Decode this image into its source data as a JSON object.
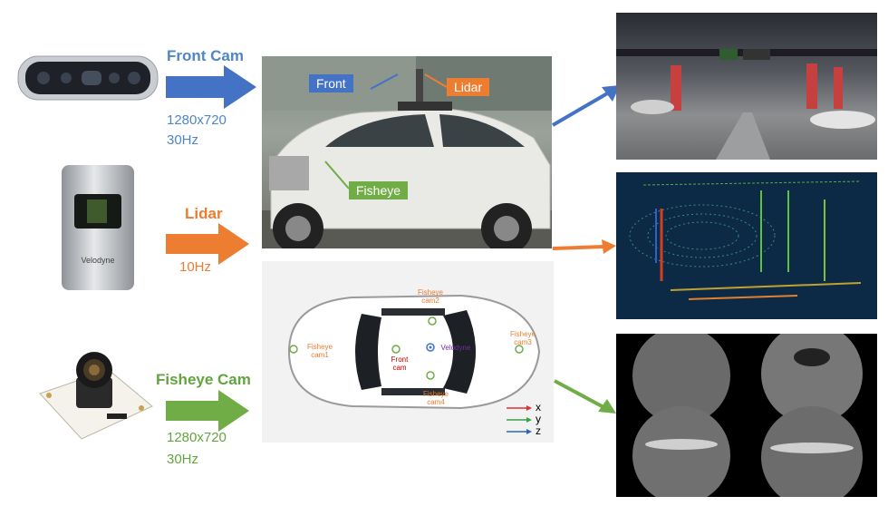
{
  "sensors": {
    "front_cam": {
      "name": "Front Cam",
      "resolution": "1280x720",
      "rate": "30Hz"
    },
    "lidar": {
      "name": "Lidar",
      "rate": "10Hz",
      "brand": "Velodyne"
    },
    "fisheye_cam": {
      "name": "Fisheye Cam",
      "resolution": "1280x720",
      "rate": "30Hz"
    }
  },
  "photo_tags": {
    "front": "Front",
    "lidar": "Lidar",
    "fisheye": "Fisheye"
  },
  "topview": {
    "fisheye_cam1": "Fisheye\ncam1",
    "fisheye_cam2": "Fisheye\ncam2",
    "fisheye_cam3": "Fisheye\ncam3",
    "fisheye_cam4": "Fisheye\ncam4",
    "front_cam": "Front\ncam",
    "velodyne": "Velodyne",
    "axis_x": "x",
    "axis_y": "y",
    "axis_z": "z"
  },
  "colors": {
    "blue": "#4f86c6",
    "orange": "#ec7c30",
    "green": "#62a43e",
    "purple": "#7030a0"
  }
}
